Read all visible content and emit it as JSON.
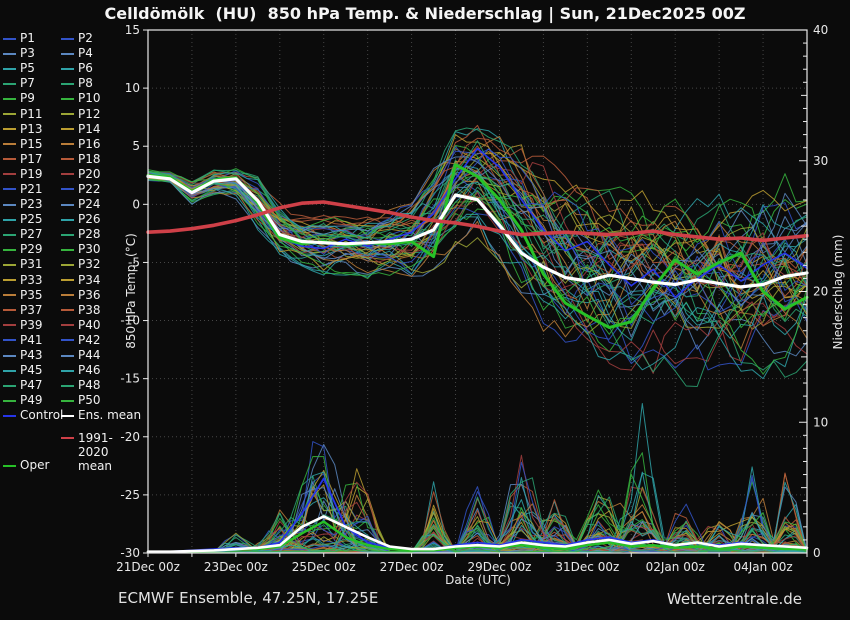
{
  "title": "Celldömölk  (HU)  850 hPa Temp. & Niederschlag | Sun, 21Dec2025 00Z",
  "footer": {
    "left": "ECMWF Ensemble, 47.25N, 17.25E",
    "right": "Wetterzentrale.de"
  },
  "legend": {
    "members": [
      {
        "label": "P1",
        "color": "#3253c8"
      },
      {
        "label": "P2",
        "color": "#3253c8"
      },
      {
        "label": "P3",
        "color": "#5b87c0"
      },
      {
        "label": "P4",
        "color": "#5b87c0"
      },
      {
        "label": "P5",
        "color": "#2fa3a8"
      },
      {
        "label": "P6",
        "color": "#2fa3a8"
      },
      {
        "label": "P7",
        "color": "#2ba473"
      },
      {
        "label": "P8",
        "color": "#2ba473"
      },
      {
        "label": "P9",
        "color": "#36b43e"
      },
      {
        "label": "P10",
        "color": "#36b43e"
      },
      {
        "label": "P11",
        "color": "#9ca635"
      },
      {
        "label": "P12",
        "color": "#9ca635"
      },
      {
        "label": "P13",
        "color": "#bb9e31"
      },
      {
        "label": "P14",
        "color": "#bb9e31"
      },
      {
        "label": "P15",
        "color": "#ba7d39"
      },
      {
        "label": "P16",
        "color": "#ba7d39"
      },
      {
        "label": "P17",
        "color": "#b65a39"
      },
      {
        "label": "P18",
        "color": "#b65a39"
      },
      {
        "label": "P19",
        "color": "#a23e3e"
      },
      {
        "label": "P20",
        "color": "#a23e3e"
      },
      {
        "label": "P21",
        "color": "#3253c8"
      },
      {
        "label": "P22",
        "color": "#3253c8"
      },
      {
        "label": "P23",
        "color": "#5b87c0"
      },
      {
        "label": "P24",
        "color": "#5b87c0"
      },
      {
        "label": "P25",
        "color": "#2fa3a8"
      },
      {
        "label": "P26",
        "color": "#2fa3a8"
      },
      {
        "label": "P27",
        "color": "#2ba473"
      },
      {
        "label": "P28",
        "color": "#2ba473"
      },
      {
        "label": "P29",
        "color": "#36b43e"
      },
      {
        "label": "P30",
        "color": "#36b43e"
      },
      {
        "label": "P31",
        "color": "#9ca635"
      },
      {
        "label": "P32",
        "color": "#9ca635"
      },
      {
        "label": "P33",
        "color": "#bb9e31"
      },
      {
        "label": "P34",
        "color": "#bb9e31"
      },
      {
        "label": "P35",
        "color": "#ba7d39"
      },
      {
        "label": "P36",
        "color": "#ba7d39"
      },
      {
        "label": "P37",
        "color": "#b65a39"
      },
      {
        "label": "P38",
        "color": "#b65a39"
      },
      {
        "label": "P39",
        "color": "#a23e3e"
      },
      {
        "label": "P40",
        "color": "#a23e3e"
      },
      {
        "label": "P41",
        "color": "#3253c8"
      },
      {
        "label": "P42",
        "color": "#3253c8"
      },
      {
        "label": "P43",
        "color": "#5b87c0"
      },
      {
        "label": "P44",
        "color": "#5b87c0"
      },
      {
        "label": "P45",
        "color": "#2fa3a8"
      },
      {
        "label": "P46",
        "color": "#2fa3a8"
      },
      {
        "label": "P47",
        "color": "#2ba473"
      },
      {
        "label": "P48",
        "color": "#2ba473"
      },
      {
        "label": "P49",
        "color": "#36b43e"
      },
      {
        "label": "P50",
        "color": "#36b43e"
      }
    ],
    "special": [
      {
        "label": "Control",
        "color": "#2635e8"
      },
      {
        "label": "Ens. mean",
        "color": "#ffffff"
      }
    ],
    "extra": [
      {
        "label": "Oper",
        "color": "#27c127"
      },
      {
        "label": "1991-2020 mean",
        "color": "#cf4048"
      }
    ]
  },
  "chart_data": {
    "type": "line",
    "title": "Celldömölk (HU) 850 hPa Temp. & Niederschlag | Sun, 21Dec2025 00Z",
    "xlabel": "Date (UTC)",
    "ylabel_left": "850 hPa Temp. (°C)",
    "ylabel_right": "Niederschlag (mm)",
    "x_unit_days_since": "21Dec2025 00Z",
    "x_range_days": [
      0,
      15
    ],
    "y_left_range": [
      -30,
      15
    ],
    "y_right_range": [
      0,
      40
    ],
    "grid": "dotted; vertical every 1 day, horizontal every 5 °C",
    "x_ticks": [
      {
        "day": 0,
        "label": "21Dec 00z"
      },
      {
        "day": 2,
        "label": "23Dec 00z"
      },
      {
        "day": 4,
        "label": "25Dec 00z"
      },
      {
        "day": 6,
        "label": "27Dec 00z"
      },
      {
        "day": 8,
        "label": "29Dec 00z"
      },
      {
        "day": 10,
        "label": "31Dec 00z"
      },
      {
        "day": 12,
        "label": "02Jan 00z"
      },
      {
        "day": 14,
        "label": "04Jan 00z"
      }
    ],
    "y_left_ticks": [
      15,
      10,
      5,
      0,
      -5,
      -10,
      -15,
      -20,
      -25,
      -30
    ],
    "y_right_ticks": [
      40,
      30,
      20,
      10,
      0
    ],
    "x_nodes": [
      0,
      0.5,
      1,
      1.5,
      2,
      2.5,
      3,
      3.5,
      4,
      4.5,
      5,
      5.5,
      6,
      6.5,
      7,
      7.5,
      8,
      8.5,
      9,
      9.5,
      10,
      10.5,
      11,
      11.5,
      12,
      12.5,
      13,
      13.5,
      14,
      14.5,
      15
    ],
    "temp": {
      "ens_mean": [
        2.4,
        2.2,
        1.0,
        2.0,
        2.2,
        0.3,
        -2.6,
        -3.2,
        -3.3,
        -3.4,
        -3.3,
        -3.2,
        -3.0,
        -2.2,
        0.8,
        0.4,
        -1.8,
        -4.2,
        -5.4,
        -6.3,
        -6.6,
        -6.1,
        -6.4,
        -6.7,
        -6.9,
        -6.5,
        -6.8,
        -7.1,
        -6.9,
        -6.2,
        -5.9
      ],
      "climate_mean_1991_2020": [
        -2.4,
        -2.3,
        -2.1,
        -1.8,
        -1.4,
        -0.9,
        -0.3,
        0.1,
        0.2,
        -0.1,
        -0.4,
        -0.7,
        -1.1,
        -1.4,
        -1.6,
        -1.9,
        -2.3,
        -2.6,
        -2.5,
        -2.4,
        -2.5,
        -2.6,
        -2.5,
        -2.3,
        -2.6,
        -2.8,
        -3.0,
        -2.9,
        -3.1,
        -2.9,
        -2.7
      ],
      "oper": [
        2.5,
        2.3,
        1.1,
        2.1,
        2.3,
        0.1,
        -2.9,
        -3.4,
        -3.2,
        -3.5,
        -3.3,
        -3.4,
        -3.2,
        -4.5,
        3.4,
        2.4,
        0.4,
        -2.2,
        -6.0,
        -8.5,
        -9.6,
        -10.6,
        -10.1,
        -7.2,
        -4.8,
        -6.0,
        -5.0,
        -4.2,
        -7.5,
        -9.0,
        -8.0
      ],
      "control": [
        2.5,
        2.2,
        0.9,
        2.0,
        2.1,
        0.0,
        -2.9,
        -3.6,
        -3.8,
        -3.0,
        -3.6,
        -3.0,
        -2.4,
        -0.8,
        2.2,
        4.8,
        3.2,
        0.4,
        -2.2,
        -4.0,
        -3.2,
        -5.2,
        -7.0,
        -5.6,
        -8.0,
        -6.4,
        -5.2,
        -6.6,
        -5.2,
        -4.2,
        -5.5
      ],
      "members_envelope_min": [
        2.0,
        1.8,
        0.0,
        0.8,
        0.5,
        -2.2,
        -4.6,
        -5.5,
        -6.0,
        -6.0,
        -6.5,
        -6.0,
        -6.5,
        -6.0,
        -4.0,
        -3.0,
        -5.0,
        -8.0,
        -11.0,
        -12.5,
        -13.5,
        -14.0,
        -14.5,
        -15.0,
        -15.0,
        -15.5,
        -15.0,
        -15.5,
        -15.0,
        -14.5,
        -14.0
      ],
      "members_envelope_max": [
        3.0,
        2.8,
        2.2,
        3.0,
        3.2,
        2.5,
        0.0,
        -1.0,
        -1.0,
        -1.2,
        -1.0,
        -0.5,
        0.5,
        3.0,
        6.5,
        7.0,
        6.0,
        5.0,
        4.0,
        3.0,
        2.5,
        2.0,
        1.5,
        1.0,
        1.5,
        2.0,
        2.5,
        2.0,
        3.0,
        3.5,
        3.0
      ]
    },
    "precip_mm": {
      "ens_mean": [
        0.1,
        0.1,
        0.15,
        0.2,
        0.3,
        0.4,
        0.6,
        2.0,
        2.8,
        2.0,
        1.2,
        0.5,
        0.3,
        0.3,
        0.5,
        0.6,
        0.5,
        0.8,
        0.6,
        0.5,
        0.8,
        1.0,
        0.7,
        0.9,
        0.6,
        0.8,
        0.5,
        0.7,
        0.6,
        0.5,
        0.4
      ],
      "oper": [
        0.1,
        0.1,
        0.1,
        0.2,
        0.3,
        0.3,
        0.5,
        1.5,
        2.4,
        1.2,
        0.6,
        0.3,
        0.2,
        0.2,
        0.4,
        0.5,
        0.4,
        0.6,
        0.4,
        0.3,
        0.6,
        0.8,
        0.5,
        0.6,
        0.4,
        0.5,
        0.3,
        0.5,
        0.4,
        0.3,
        0.3
      ],
      "control": [
        0.1,
        0.1,
        0.2,
        0.3,
        0.4,
        0.4,
        0.8,
        3.0,
        5.7,
        2.0,
        0.8,
        0.4,
        0.3,
        0.3,
        0.6,
        0.8,
        0.6,
        1.0,
        0.8,
        0.6,
        1.0,
        1.2,
        0.8,
        1.0,
        0.6,
        0.8,
        0.6,
        0.8,
        0.6,
        0.5,
        0.4
      ],
      "member_spike_events": [
        {
          "center_day": 2.0,
          "half_width_days": 0.5,
          "max_mm": 1.5
        },
        {
          "center_day": 3.0,
          "half_width_days": 0.6,
          "max_mm": 3.0
        },
        {
          "center_day": 3.9,
          "half_width_days": 0.9,
          "max_mm": 9.0
        },
        {
          "center_day": 4.8,
          "half_width_days": 0.6,
          "max_mm": 6.0
        },
        {
          "center_day": 6.5,
          "half_width_days": 0.4,
          "max_mm": 4.5
        },
        {
          "center_day": 7.5,
          "half_width_days": 0.5,
          "max_mm": 5.0
        },
        {
          "center_day": 8.5,
          "half_width_days": 0.6,
          "max_mm": 10.0
        },
        {
          "center_day": 9.3,
          "half_width_days": 0.5,
          "max_mm": 6.0
        },
        {
          "center_day": 10.3,
          "half_width_days": 0.6,
          "max_mm": 7.0
        },
        {
          "center_day": 11.2,
          "half_width_days": 0.6,
          "max_mm": 11.0
        },
        {
          "center_day": 12.2,
          "half_width_days": 0.5,
          "max_mm": 5.0
        },
        {
          "center_day": 13.0,
          "half_width_days": 0.5,
          "max_mm": 4.0
        },
        {
          "center_day": 13.8,
          "half_width_days": 0.5,
          "max_mm": 6.0
        },
        {
          "center_day": 14.6,
          "half_width_days": 0.4,
          "max_mm": 8.0
        }
      ]
    }
  }
}
